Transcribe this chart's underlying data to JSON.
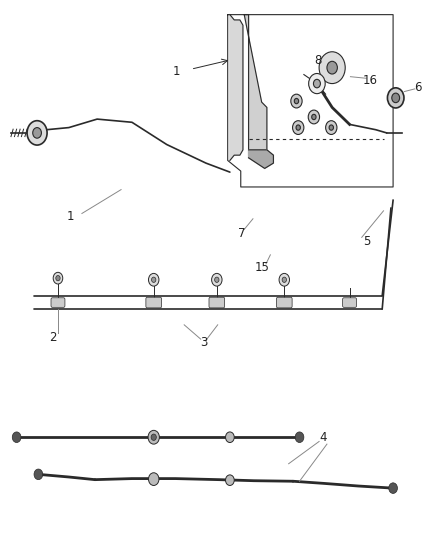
{
  "background_color": "#ffffff",
  "line_color": "#2a2a2a",
  "label_color": "#222222",
  "fig_width": 4.38,
  "fig_height": 5.33,
  "dpi": 100
}
